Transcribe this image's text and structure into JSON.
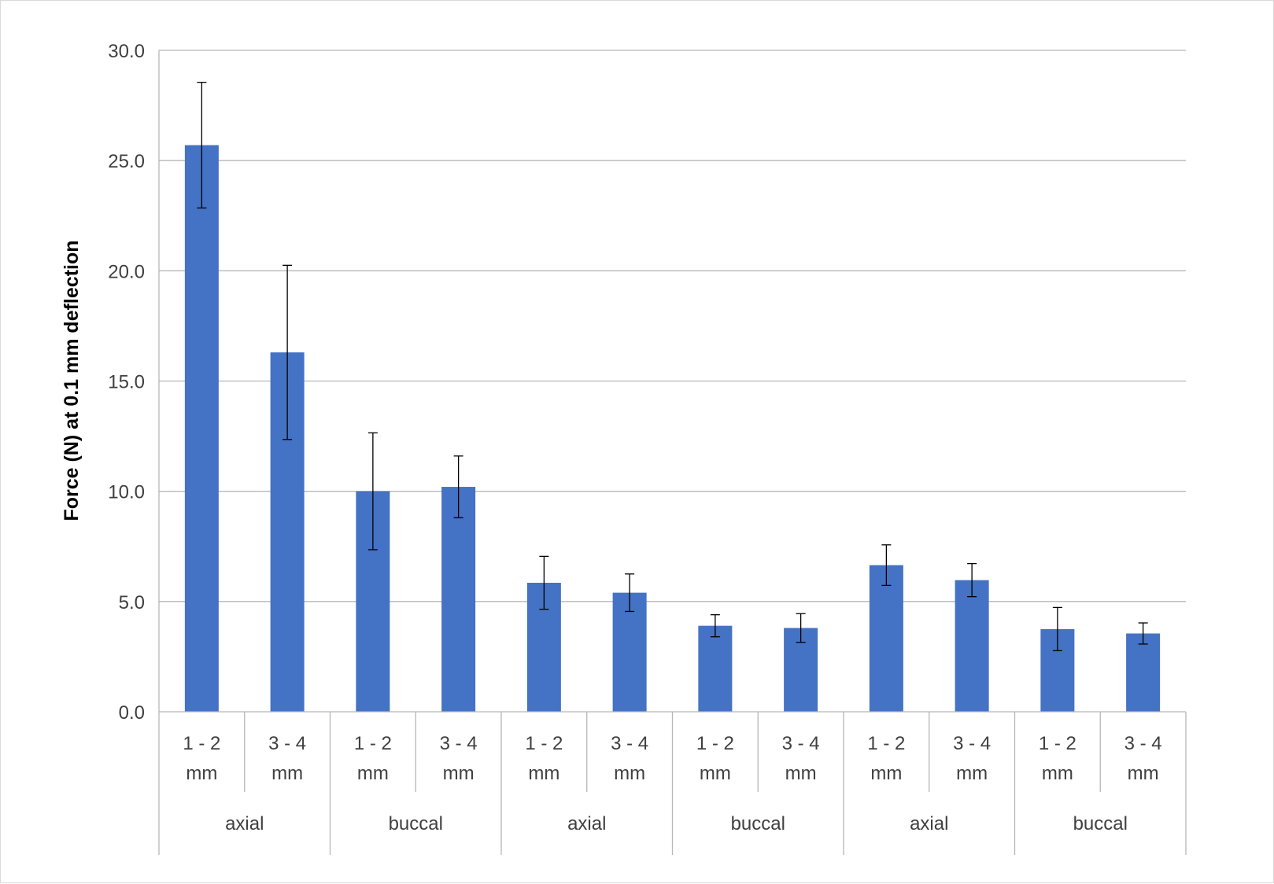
{
  "chart_data": {
    "type": "bar",
    "title": "",
    "xlabel": "",
    "ylabel": "Force (N) at 0.1  mm deflection",
    "ylim": [
      0,
      30
    ],
    "yticks": [
      "0.0",
      "5.0",
      "10.0",
      "15.0",
      "20.0",
      "25.0",
      "30.0"
    ],
    "grid": true,
    "legend": "none",
    "bar_color": "#4472C4",
    "categories": [
      {
        "sub": [
          "1 - 2",
          "mm"
        ],
        "group": "axial"
      },
      {
        "sub": [
          "3 - 4",
          "mm"
        ],
        "group": "axial"
      },
      {
        "sub": [
          "1 - 2",
          "mm"
        ],
        "group": "buccal"
      },
      {
        "sub": [
          "3 - 4",
          "mm"
        ],
        "group": "buccal"
      },
      {
        "sub": [
          "1 - 2",
          "mm"
        ],
        "group": "axial"
      },
      {
        "sub": [
          "3 - 4",
          "mm"
        ],
        "group": "axial"
      },
      {
        "sub": [
          "1 - 2",
          "mm"
        ],
        "group": "buccal"
      },
      {
        "sub": [
          "3 - 4",
          "mm"
        ],
        "group": "buccal"
      },
      {
        "sub": [
          "1 - 2",
          "mm"
        ],
        "group": "axial"
      },
      {
        "sub": [
          "3 - 4",
          "mm"
        ],
        "group": "axial"
      },
      {
        "sub": [
          "1 - 2",
          "mm"
        ],
        "group": "buccal"
      },
      {
        "sub": [
          "3 - 4",
          "mm"
        ],
        "group": "buccal"
      }
    ],
    "groups": [
      "axial",
      "buccal",
      "axial",
      "buccal",
      "axial",
      "buccal"
    ],
    "values": [
      25.7,
      16.3,
      10.0,
      10.2,
      5.85,
      5.4,
      3.9,
      3.8,
      6.65,
      5.97,
      3.75,
      3.55
    ],
    "errors": [
      2.85,
      3.95,
      2.65,
      1.4,
      1.2,
      0.85,
      0.5,
      0.65,
      0.92,
      0.75,
      0.98,
      0.48
    ]
  }
}
